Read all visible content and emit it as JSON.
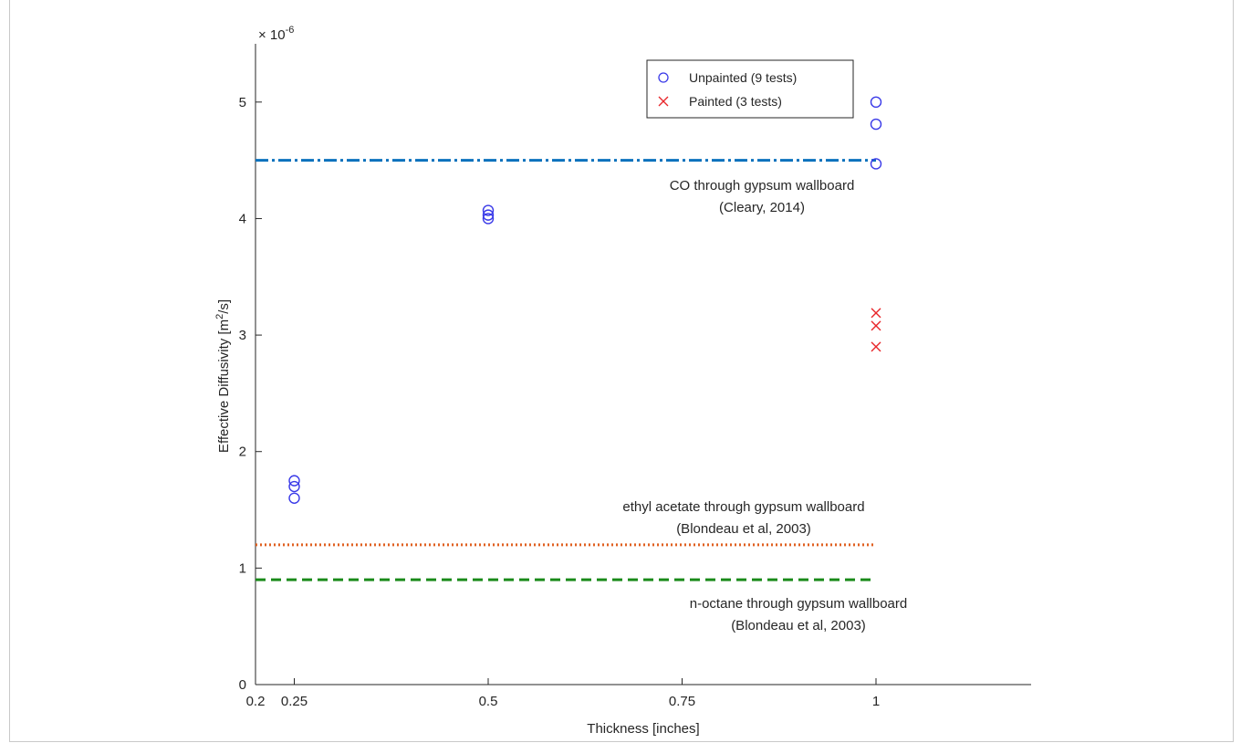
{
  "chart_data": {
    "type": "scatter",
    "xlabel": "Thickness [inches]",
    "ylabel": "Effective Diffusivity [m²/s]",
    "ylabel_parts": [
      "Effective Diffusivity [m",
      "2",
      "/s]"
    ],
    "y_multiplier": [
      "× 10",
      "-6"
    ],
    "xlim": [
      0.2,
      1.2
    ],
    "ylim": [
      0,
      5.5
    ],
    "x_ticks": [
      0.2,
      0.25,
      0.5,
      0.75,
      1
    ],
    "x_tick_labels": [
      "0.2",
      "0.25",
      "0.5",
      "0.75",
      "1"
    ],
    "y_ticks": [
      0,
      1,
      2,
      3,
      4,
      5
    ],
    "y_tick_labels": [
      "0",
      "1",
      "2",
      "3",
      "4",
      "5"
    ],
    "grid": false,
    "legend_position": "top-center",
    "series": [
      {
        "name": "Unpainted (9 tests)",
        "marker": "circle",
        "color": "#3a3ae8",
        "points": [
          [
            0.25,
            1.75
          ],
          [
            0.25,
            1.7
          ],
          [
            0.25,
            1.6
          ],
          [
            0.5,
            4.07
          ],
          [
            0.5,
            4.03
          ],
          [
            0.5,
            4.0
          ],
          [
            1.0,
            5.0
          ],
          [
            1.0,
            4.81
          ],
          [
            1.0,
            4.47
          ]
        ]
      },
      {
        "name": "Painted (3 tests)",
        "marker": "x",
        "color": "#e8262a",
        "points": [
          [
            1.0,
            3.19
          ],
          [
            1.0,
            3.08
          ],
          [
            1.0,
            2.9
          ]
        ]
      }
    ],
    "reference_lines": [
      {
        "y": 4.5,
        "x_range": [
          0.2,
          1.0
        ],
        "style": "dashdot",
        "color": "#0a72bd",
        "label": [
          "CO through gypsum wallboard",
          "(Cleary, 2014)"
        ]
      },
      {
        "y": 1.2,
        "x_range": [
          0.2,
          1.0
        ],
        "style": "dotted",
        "color": "#e06020",
        "label": [
          "ethyl acetate through gypsum wallboard",
          "(Blondeau et al, 2003)"
        ]
      },
      {
        "y": 0.9,
        "x_range": [
          0.2,
          1.0
        ],
        "style": "dashed",
        "color": "#1a8a1a",
        "label": [
          "n-octane through gypsum wallboard",
          "(Blondeau et al, 2003)"
        ]
      }
    ]
  }
}
